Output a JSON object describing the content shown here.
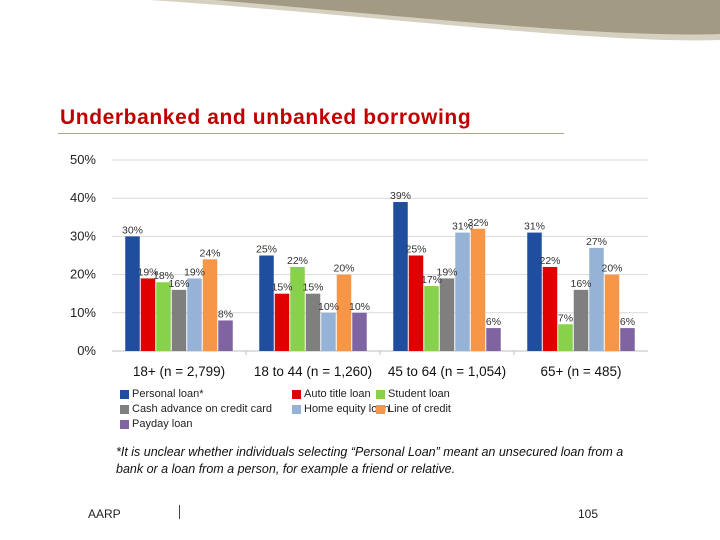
{
  "slide": {
    "title": "Underbanked and unbanked borrowing",
    "footnote": "*It is unclear whether individuals selecting “Personal Loan” meant an unsecured loan from a bank or a loan from a person, for example a friend or relative.",
    "footer_org": "AARP",
    "page_number": "105"
  },
  "colors": {
    "title": "#c00000",
    "decor_dark": "#a29a82",
    "decor_light": "#cdc6b4"
  },
  "chart_data": {
    "type": "bar",
    "categories": [
      "18+ (n = 2,799)",
      "18 to 44 (n = 1,260)",
      "45 to 64 (n = 1,054)",
      "65+ (n = 485)"
    ],
    "series": [
      {
        "name": "Personal loan*",
        "color": "#1f4e9e",
        "values": [
          30,
          25,
          39,
          31
        ],
        "labels": [
          "30%",
          "25%",
          "39%",
          "31%"
        ]
      },
      {
        "name": "Auto title loan",
        "color": "#e00000",
        "values": [
          19,
          15,
          25,
          22
        ],
        "labels": [
          "19%",
          "15%",
          "25%",
          "22%"
        ]
      },
      {
        "name": "Student loan",
        "color": "#88d14a",
        "values": [
          18,
          22,
          17,
          7
        ],
        "labels": [
          "18%",
          "22%",
          "17%",
          "7%"
        ]
      },
      {
        "name": "Cash advance on credit card",
        "color": "#7f7f7f",
        "values": [
          16,
          15,
          19,
          16
        ],
        "labels": [
          "16%",
          "15%",
          "19%",
          "16%"
        ]
      },
      {
        "name": "Home equity loan",
        "color": "#95b3d7",
        "values": [
          19,
          10,
          31,
          27
        ],
        "labels": [
          "19%",
          "10%",
          "31%",
          "27%"
        ]
      },
      {
        "name": "Line of credit",
        "color": "#f79646",
        "values": [
          24,
          20,
          32,
          20
        ],
        "labels": [
          "24%",
          "20%",
          "32%",
          "20%"
        ]
      },
      {
        "name": "Payday loan",
        "color": "#8064a2",
        "values": [
          8,
          10,
          6,
          6
        ],
        "labels": [
          "8%",
          "10%",
          "6%",
          "6%"
        ]
      }
    ],
    "y_ticks": [
      "0%",
      "10%",
      "20%",
      "30%",
      "40%",
      "50%"
    ],
    "ylim": [
      0,
      50
    ],
    "grid": true,
    "legend_position": "bottom"
  }
}
